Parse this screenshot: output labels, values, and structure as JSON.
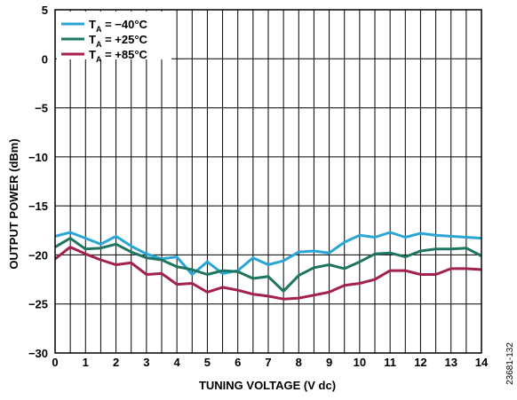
{
  "figure_id": "23681-132",
  "chart_data": {
    "type": "line",
    "xlabel": "TUNING VOLTAGE (V dc)",
    "ylabel": "OUTPUT POWER (dBm)",
    "xlim": [
      0,
      14
    ],
    "ylim": [
      -30,
      5
    ],
    "x_ticks": [
      "0",
      "1",
      "2",
      "3",
      "4",
      "5",
      "6",
      "7",
      "8",
      "9",
      "10",
      "11",
      "12",
      "13",
      "14"
    ],
    "y_ticks": [
      "5",
      "0",
      "−5",
      "−10",
      "−15",
      "−20",
      "−25",
      "−30"
    ],
    "x_minor_step": 0.5,
    "grid": true,
    "legend_position": "top-left",
    "x": [
      0,
      0.5,
      1,
      1.5,
      2,
      2.5,
      3,
      3.5,
      4,
      4.5,
      5,
      5.5,
      6,
      6.5,
      7,
      7.5,
      8,
      8.5,
      9,
      9.5,
      10,
      10.5,
      11,
      11.5,
      12,
      12.5,
      13,
      13.5,
      14
    ],
    "series": [
      {
        "name_main": "T",
        "name_sub": "A",
        "name_rest": " = −40°C",
        "color": "#2aa6d6",
        "values": [
          -18.1,
          -17.7,
          -18.3,
          -18.9,
          -18.1,
          -19.1,
          -19.9,
          -20.4,
          -20.2,
          -22.0,
          -20.7,
          -21.9,
          -21.6,
          -20.3,
          -21.0,
          -20.6,
          -19.7,
          -19.6,
          -19.8,
          -18.7,
          -18.0,
          -18.2,
          -17.7,
          -18.2,
          -17.8,
          -18.0,
          -18.1,
          -18.2,
          -18.3
        ]
      },
      {
        "name_main": "T",
        "name_sub": "A",
        "name_rest": " = +25°C",
        "color": "#1e7560",
        "values": [
          -19.2,
          -18.3,
          -19.4,
          -19.3,
          -18.9,
          -19.7,
          -20.3,
          -20.5,
          -21.2,
          -21.5,
          -22.0,
          -21.6,
          -21.7,
          -22.4,
          -22.2,
          -23.7,
          -22.1,
          -21.3,
          -21.0,
          -21.4,
          -20.7,
          -19.9,
          -19.8,
          -20.2,
          -19.6,
          -19.4,
          -19.4,
          -19.3,
          -20.1
        ]
      },
      {
        "name_main": "T",
        "name_sub": "A",
        "name_rest": " = +85°C",
        "color": "#a3214a",
        "values": [
          -20.4,
          -19.2,
          -19.9,
          -20.5,
          -21.0,
          -20.8,
          -22.0,
          -21.9,
          -23.0,
          -22.9,
          -23.8,
          -23.3,
          -23.6,
          -24.0,
          -24.2,
          -24.5,
          -24.4,
          -24.1,
          -23.8,
          -23.1,
          -22.9,
          -22.5,
          -21.6,
          -21.6,
          -22.0,
          -22.0,
          -21.4,
          -21.4,
          -21.5
        ]
      }
    ]
  }
}
